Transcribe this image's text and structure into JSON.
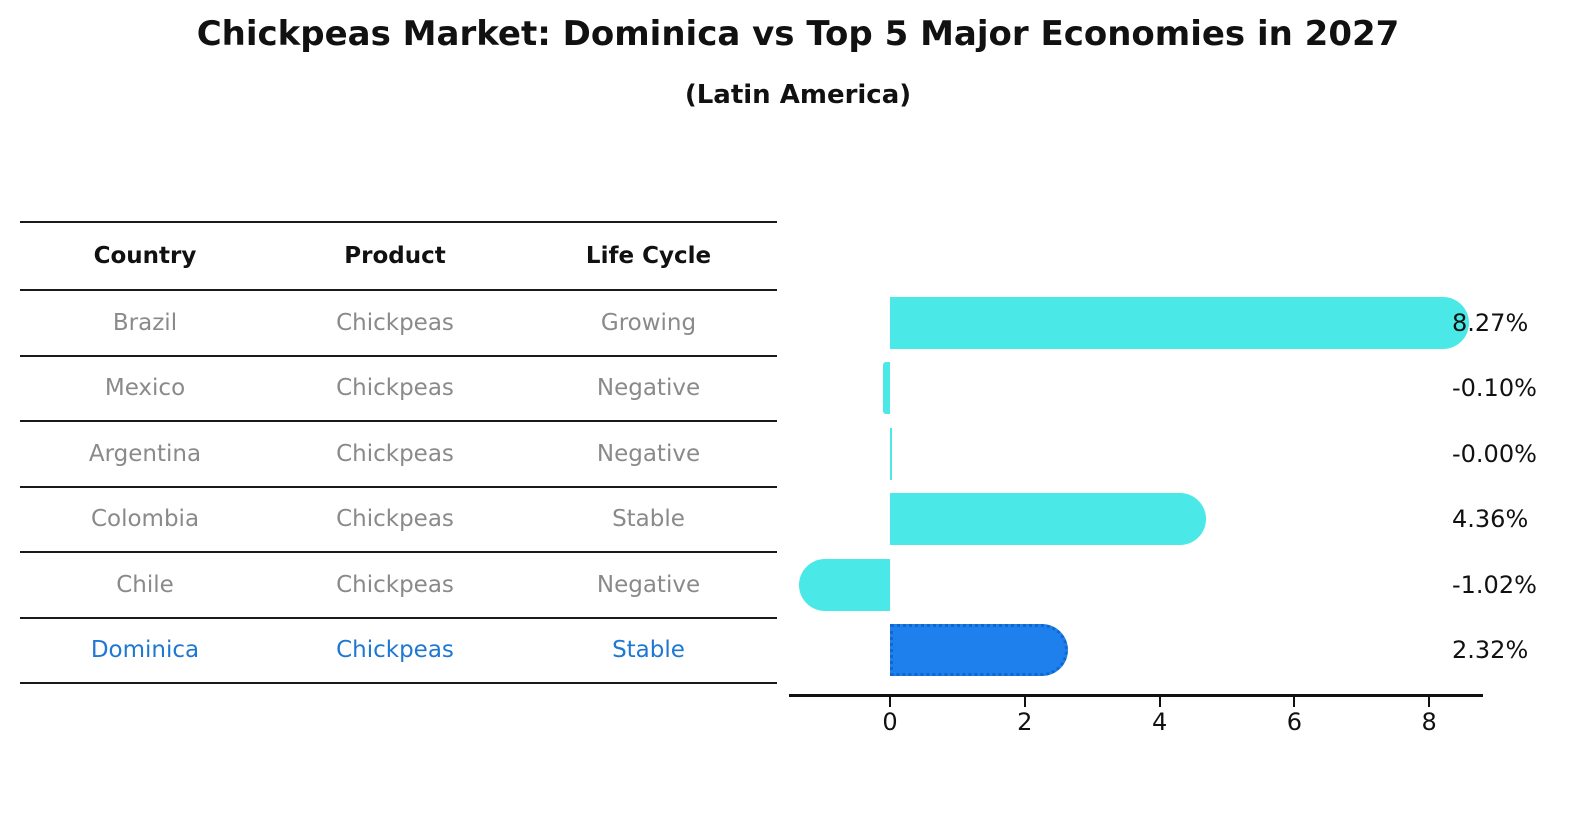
{
  "title": "Chickpeas Market: Dominica vs Top 5 Major Economies in 2027",
  "subtitle": "(Latin America)",
  "table": {
    "headers": [
      "Country",
      "Product",
      "Life Cycle"
    ],
    "rows": [
      {
        "country": "Brazil",
        "product": "Chickpeas",
        "life_cycle": "Growing",
        "highlight": false
      },
      {
        "country": "Mexico",
        "product": "Chickpeas",
        "life_cycle": "Negative",
        "highlight": false
      },
      {
        "country": "Argentina",
        "product": "Chickpeas",
        "life_cycle": "Negative",
        "highlight": false
      },
      {
        "country": "Colombia",
        "product": "Chickpeas",
        "life_cycle": "Stable",
        "highlight": false
      },
      {
        "country": "Chile",
        "product": "Chickpeas",
        "life_cycle": "Negative",
        "highlight": false
      },
      {
        "country": "Dominica",
        "product": "Chickpeas",
        "life_cycle": "Stable",
        "highlight": true
      }
    ]
  },
  "chart_data": {
    "type": "bar",
    "orientation": "horizontal",
    "categories": [
      "Brazil",
      "Mexico",
      "Argentina",
      "Colombia",
      "Chile",
      "Dominica"
    ],
    "values": [
      8.27,
      -0.1,
      -0.0,
      4.36,
      -1.02,
      2.32
    ],
    "value_labels": [
      "8.27%",
      "-0.10%",
      "-0.00%",
      "4.36%",
      "-1.02%",
      "2.32%"
    ],
    "x_ticks": [
      "0",
      "2",
      "4",
      "6",
      "8"
    ],
    "xlim": [
      -1.5,
      8.8
    ],
    "unit": "%",
    "bar_color": "#4ae8e6",
    "highlight_color": "#1e80ec",
    "highlight_index": 5,
    "grid": false,
    "legend": "none",
    "title": "Chickpeas Market: Dominica vs Top 5 Major Economies in 2027",
    "subtitle": "(Latin America)"
  },
  "colors": {
    "highlight_text": "#1e78d2",
    "row_text": "#8a8a8a",
    "header_text": "#111111",
    "axis": "#111111",
    "background": "#ffffff"
  }
}
